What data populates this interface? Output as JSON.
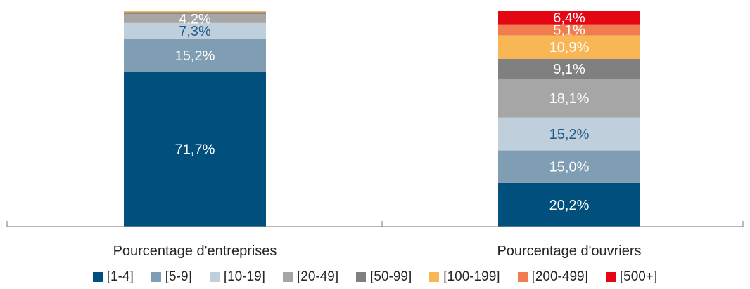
{
  "chart_data": {
    "type": "bar",
    "stacked": true,
    "categories": [
      "Pourcentage d'entreprises",
      "Pourcentage d'ouvriers"
    ],
    "ylim": [
      0,
      100
    ],
    "grid": false,
    "legend_position": "bottom",
    "series": [
      {
        "name": "[1-4]",
        "color": "#004f7c",
        "values": [
          71.7,
          20.2
        ],
        "labels": [
          "71,7%",
          "20,2%"
        ],
        "label_color": "#ffffff"
      },
      {
        "name": "[5-9]",
        "color": "#7f9db3",
        "values": [
          15.2,
          15.0
        ],
        "labels": [
          "15,2%",
          "15,0%"
        ],
        "label_color": "#ffffff"
      },
      {
        "name": "[10-19]",
        "color": "#bfcfdb",
        "values": [
          7.3,
          15.2
        ],
        "labels": [
          "7,3%",
          "15,2%"
        ],
        "label_color": "#1f5a8a"
      },
      {
        "name": "[20-49]",
        "color": "#a6a6a6",
        "values": [
          4.2,
          18.1
        ],
        "labels": [
          "4,2%",
          "18,1%"
        ],
        "label_color": "#ffffff"
      },
      {
        "name": "[50-99]",
        "color": "#808080",
        "values": [
          0.8,
          9.1
        ],
        "labels": [
          "",
          "9,1%"
        ],
        "label_color": "#ffffff"
      },
      {
        "name": "[100-199]",
        "color": "#f8b655",
        "values": [
          0.5,
          10.9
        ],
        "labels": [
          "",
          "10,9%"
        ],
        "label_color": "#ffffff"
      },
      {
        "name": "[200-499]",
        "color": "#f07c4f",
        "values": [
          0.2,
          5.1
        ],
        "labels": [
          "",
          "5,1%"
        ],
        "label_color": "#ffffff"
      },
      {
        "name": "[500+]",
        "color": "#e30613",
        "values": [
          0.1,
          6.4
        ],
        "labels": [
          "",
          "6,4%"
        ],
        "label_color": "#ffffff"
      }
    ]
  }
}
